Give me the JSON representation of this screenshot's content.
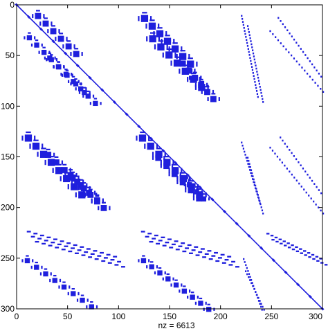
{
  "chart_data": {
    "type": "scatter",
    "subtype": "sparsity-pattern",
    "title": "",
    "xlabel": "nz = 6613",
    "ylabel": "",
    "xlim": [
      0,
      300
    ],
    "ylim": [
      300,
      0
    ],
    "y_reversed": true,
    "x_ticks": [
      0,
      50,
      100,
      150,
      200,
      250,
      300
    ],
    "y_ticks": [
      0,
      50,
      100,
      150,
      200,
      250,
      300
    ],
    "grid": false,
    "marker_color": "#1f1fdd",
    "nonzero_count": 6613,
    "structure": {
      "main_diagonal": [
        [
          0,
          300
        ]
      ],
      "row_bands": [
        {
          "rows": [
            0,
            100
          ],
          "cols": [
            0,
            100
          ]
        },
        {
          "rows": [
            0,
            100
          ],
          "cols": [
            110,
            210
          ]
        },
        {
          "rows": [
            0,
            100
          ],
          "cols": [
            220,
            240
          ]
        },
        {
          "rows": [
            0,
            100
          ],
          "cols": [
            245,
            300
          ]
        },
        {
          "rows": [
            110,
            210
          ],
          "cols": [
            0,
            100
          ]
        },
        {
          "rows": [
            110,
            210
          ],
          "cols": [
            110,
            210
          ]
        },
        {
          "rows": [
            110,
            210
          ],
          "cols": [
            220,
            240
          ]
        },
        {
          "rows": [
            110,
            210
          ],
          "cols": [
            245,
            300
          ]
        },
        {
          "rows": [
            220,
            260
          ],
          "cols": [
            0,
            100
          ]
        },
        {
          "rows": [
            220,
            260
          ],
          "cols": [
            110,
            210
          ]
        },
        {
          "rows": [
            220,
            260
          ],
          "cols": [
            240,
            300
          ]
        },
        {
          "rows": [
            245,
            300
          ],
          "cols": [
            0,
            100
          ]
        },
        {
          "rows": [
            245,
            300
          ],
          "cols": [
            110,
            210
          ]
        },
        {
          "rows": [
            245,
            300
          ],
          "cols": [
            220,
            240
          ]
        }
      ]
    }
  }
}
